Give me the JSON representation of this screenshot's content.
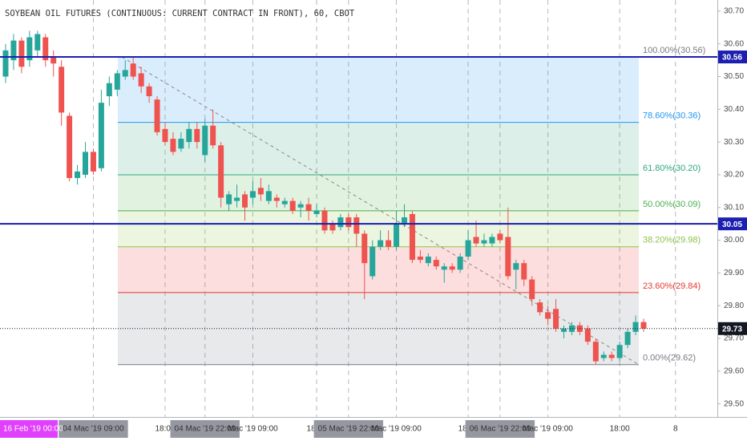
{
  "chart_data": {
    "type": "candlestick",
    "title": "SOYBEAN OIL FUTURES (CONTINUOUS: CURRENT CONTRACT IN FRONT), 60, CBOT",
    "up_color": "#26a69a",
    "down_color": "#ef5350",
    "ylim": [
      29.46,
      30.734
    ],
    "yticks": [
      {
        "value": 29.5,
        "label": "29.50"
      },
      {
        "value": 29.6,
        "label": "29.60"
      },
      {
        "value": 29.7,
        "label": "29.70"
      },
      {
        "value": 29.8,
        "label": "29.80"
      },
      {
        "value": 29.9,
        "label": "29.90"
      },
      {
        "value": 30.0,
        "label": "30.00"
      },
      {
        "value": 30.1,
        "label": "30.10"
      },
      {
        "value": 30.2,
        "label": "30.20"
      },
      {
        "value": 30.3,
        "label": "30.30"
      },
      {
        "value": 30.4,
        "label": "30.40"
      },
      {
        "value": 30.5,
        "label": "30.50"
      },
      {
        "value": 30.6,
        "label": "30.60"
      },
      {
        "value": 30.7,
        "label": "30.70"
      }
    ],
    "crosshair_label": "16 Feb '19  00:00",
    "categories": [
      null,
      null,
      null,
      null,
      null,
      null,
      null,
      null,
      null,
      null,
      null,
      "04 Mac '19  09:00",
      null,
      null,
      null,
      null,
      null,
      null,
      null,
      null,
      "18:00",
      null,
      null,
      null,
      null,
      "04 Mac '19  22:00",
      null,
      null,
      null,
      null,
      null,
      "Mac '19  09:00",
      null,
      null,
      null,
      null,
      null,
      null,
      null,
      "18:00",
      null,
      null,
      null,
      "05 Mac '19  22:00",
      null,
      null,
      null,
      null,
      null,
      "Mac '19  09:00",
      null,
      null,
      null,
      null,
      null,
      null,
      null,
      null,
      "18:00",
      null,
      null,
      null,
      "06 Mac '19  22:00",
      null,
      null,
      null,
      null,
      null,
      "Mac '19  09:00",
      null,
      null,
      null,
      null,
      null,
      null,
      null,
      null,
      "18:00",
      null,
      null,
      null,
      null,
      null,
      null,
      "8"
    ],
    "open": [
      30.5,
      30.55,
      30.61,
      30.55,
      30.58,
      30.62,
      30.56,
      30.53,
      30.38,
      30.19,
      30.2,
      30.27,
      30.22,
      30.44,
      30.46,
      30.5,
      30.54,
      30.51,
      30.47,
      30.43,
      30.34,
      30.31,
      30.28,
      30.3,
      30.34,
      30.26,
      30.35,
      30.29,
      30.11,
      30.12,
      30.14,
      30.13,
      30.16,
      30.12,
      30.13,
      30.11,
      30.12,
      30.1,
      30.11,
      30.08,
      30.09,
      30.05,
      30.04,
      30.07,
      30.07,
      30.02,
      29.89,
      29.98,
      30.0,
      29.98,
      30.05,
      30.08,
      29.95,
      29.93,
      29.94,
      29.91,
      29.92,
      29.91,
      29.95,
      30.01,
      29.99,
      29.99,
      30.02,
      30.01,
      29.91,
      29.93,
      29.88,
      29.81,
      29.78,
      29.79,
      29.72,
      29.72,
      29.74,
      29.73,
      29.69,
      29.64,
      29.65,
      29.64,
      29.68,
      29.72,
      29.75,
      null,
      null,
      null,
      null
    ],
    "high": [
      30.6,
      30.63,
      30.62,
      30.64,
      30.64,
      30.63,
      30.58,
      30.55,
      30.39,
      30.23,
      30.3,
      30.28,
      30.46,
      30.5,
      30.52,
      30.55,
      30.56,
      30.53,
      30.48,
      30.44,
      30.36,
      30.33,
      30.33,
      30.36,
      30.36,
      30.37,
      30.4,
      30.3,
      30.15,
      30.17,
      30.15,
      30.18,
      30.19,
      30.17,
      30.14,
      30.13,
      30.13,
      30.12,
      30.13,
      30.11,
      30.1,
      30.06,
      30.08,
      30.08,
      30.08,
      30.03,
      30.0,
      30.03,
      30.03,
      30.09,
      30.11,
      30.09,
      29.97,
      29.96,
      29.95,
      29.93,
      29.93,
      29.96,
      30.03,
      30.06,
      30.02,
      30.02,
      30.03,
      30.1,
      29.94,
      29.94,
      29.89,
      29.82,
      29.8,
      29.82,
      29.74,
      29.75,
      29.75,
      29.74,
      29.7,
      29.66,
      29.66,
      29.69,
      29.73,
      29.77,
      29.76,
      null,
      null,
      null,
      null
    ],
    "low": [
      30.48,
      30.52,
      30.51,
      30.53,
      30.56,
      30.53,
      30.5,
      30.35,
      30.18,
      30.17,
      30.19,
      30.2,
      30.21,
      30.41,
      30.44,
      30.49,
      30.49,
      30.45,
      30.42,
      30.32,
      30.29,
      30.26,
      30.27,
      30.28,
      30.28,
      30.24,
      30.28,
      30.1,
      30.09,
      30.1,
      30.06,
      30.11,
      30.12,
      30.11,
      30.1,
      30.1,
      30.08,
      30.07,
      30.06,
      30.07,
      30.02,
      30.02,
      30.03,
      30.03,
      29.98,
      29.82,
      29.88,
      29.97,
      29.97,
      29.97,
      30.04,
      29.93,
      29.93,
      29.92,
      29.91,
      29.87,
      29.9,
      29.9,
      29.94,
      29.98,
      29.98,
      29.98,
      29.99,
      29.88,
      29.85,
      29.86,
      29.8,
      29.77,
      29.74,
      29.72,
      29.7,
      29.71,
      29.71,
      29.68,
      29.62,
      29.63,
      29.63,
      29.63,
      29.67,
      29.71,
      29.72,
      null,
      null,
      null,
      null
    ],
    "close": [
      30.58,
      30.61,
      30.53,
      30.62,
      30.63,
      30.55,
      30.54,
      30.39,
      30.19,
      30.21,
      30.27,
      30.21,
      30.42,
      30.48,
      30.51,
      30.52,
      30.5,
      30.47,
      30.44,
      30.33,
      30.3,
      30.27,
      30.31,
      30.34,
      30.3,
      30.35,
      30.29,
      30.13,
      30.14,
      30.13,
      30.1,
      30.15,
      30.14,
      30.15,
      30.12,
      30.12,
      30.09,
      30.11,
      30.09,
      30.09,
      30.03,
      30.03,
      30.07,
      30.04,
      30.02,
      29.93,
      29.98,
      30.0,
      29.98,
      30.05,
      30.07,
      29.94,
      29.94,
      29.95,
      29.92,
      29.92,
      29.91,
      29.95,
      30.0,
      29.99,
      30.0,
      30.01,
      30.0,
      29.89,
      29.93,
      29.88,
      29.82,
      29.78,
      29.76,
      29.73,
      29.73,
      29.74,
      29.72,
      29.69,
      29.63,
      29.65,
      29.64,
      29.68,
      29.72,
      29.75,
      29.73,
      null,
      null,
      null,
      null
    ],
    "fib_levels": [
      {
        "label": "100.00%(30.56)",
        "value": 30.56,
        "color": "#787b86"
      },
      {
        "label": "78.60%(30.36)",
        "value": 30.36,
        "color": "#2196f3"
      },
      {
        "label": "61.80%(30.20)",
        "value": 30.2,
        "color": "#2fa87c"
      },
      {
        "label": "50.00%(30.09)",
        "value": 30.09,
        "color": "#4caf50"
      },
      {
        "label": "38.20%(29.98)",
        "value": 29.98,
        "color": "#8bc34a"
      },
      {
        "label": "23.60%(29.84)",
        "value": 29.84,
        "color": "#e53935"
      },
      {
        "label": "0.00%(29.62)",
        "value": 29.62,
        "color": "#787b86"
      }
    ],
    "price_lines": [
      {
        "value": 30.56,
        "color": "#1c1fb0",
        "style": "solid"
      },
      {
        "value": 30.05,
        "color": "#1c1fb0",
        "style": "solid"
      },
      {
        "value": 29.73,
        "color": "#131722",
        "style": "dotted"
      }
    ]
  }
}
